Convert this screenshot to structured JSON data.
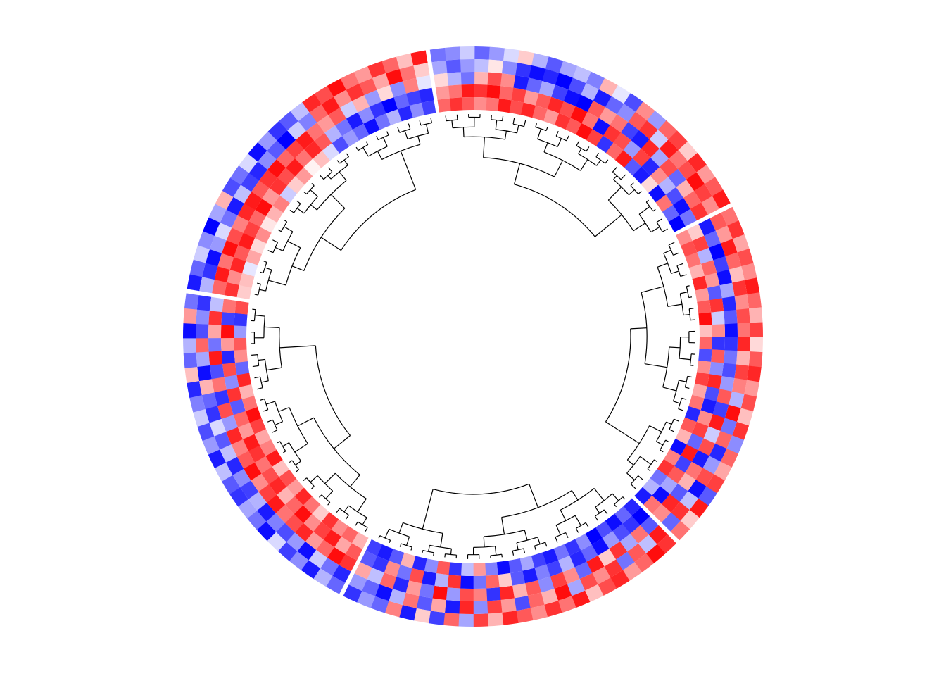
{
  "chart_data": {
    "type": "heatmap",
    "layout": "circular",
    "title": "",
    "colors": {
      "low": "#0000ff",
      "mid": "#ffffff",
      "high": "#ff0000"
    },
    "value_range": [
      -2,
      2
    ],
    "tracks": 5,
    "sectors": [
      {
        "name": "",
        "n": 24,
        "order": "top"
      },
      {
        "name": "",
        "n": 24,
        "order": "upper-right"
      },
      {
        "name": "",
        "n": 24,
        "order": "lower-right"
      },
      {
        "name": "",
        "n": 24,
        "order": "bottom"
      },
      {
        "name": "",
        "n": 24,
        "order": "left"
      }
    ],
    "values": [
      [
        [
          -1.8,
          -0.6,
          1.2,
          1.6,
          0.4
        ],
        [
          -1.2,
          -1.6,
          1.8,
          0.9,
          0.5
        ],
        [
          -0.4,
          -1.9,
          1.1,
          1.7,
          -0.2
        ],
        [
          -0.9,
          -0.8,
          1.9,
          1.3,
          0.7
        ],
        [
          -2.0,
          -0.3,
          1.4,
          1.8,
          0.3
        ],
        [
          -0.7,
          -1.1,
          1.0,
          1.5,
          0.9
        ],
        [
          0.6,
          -1.8,
          1.7,
          1.2,
          0.2
        ],
        [
          -1.4,
          -0.5,
          1.8,
          1.9,
          0.6
        ],
        [
          -1.1,
          -1.5,
          1.3,
          0.8,
          1.0
        ],
        [
          -0.3,
          -1.7,
          1.6,
          1.6,
          -0.4
        ],
        [
          -1.9,
          -0.9,
          1.9,
          1.4,
          0.4
        ],
        [
          -0.8,
          -1.3,
          1.2,
          1.8,
          0.8
        ],
        [
          -1.6,
          -2.0,
          1.5,
          1.1,
          0.1
        ],
        [
          -1.3,
          -0.4,
          1.8,
          1.7,
          0.5
        ],
        [
          -0.5,
          -1.0,
          1.1,
          1.3,
          -0.3
        ],
        [
          1.7,
          1.2,
          0.8,
          -0.6,
          -1.4
        ],
        [
          1.4,
          1.8,
          1.3,
          -1.1,
          -0.8
        ],
        [
          1.9,
          0.9,
          -0.4,
          -1.8,
          -1.2
        ],
        [
          1.1,
          1.6,
          0.6,
          -0.9,
          -1.9
        ],
        [
          0.8,
          1.3,
          -0.8,
          -1.6,
          -1.1
        ],
        [
          1.6,
          0.7,
          0.3,
          -2.0,
          -0.6
        ],
        [
          1.2,
          1.9,
          -0.9,
          -1.2,
          -1.7
        ],
        [
          0.5,
          1.1,
          1.0,
          -1.5,
          -0.9
        ],
        [
          1.8,
          0.4,
          -0.2,
          -1.7,
          -1.5
        ]
      ],
      [
        [
          -1.1,
          -0.7,
          0.3,
          0.8,
          1.2
        ],
        [
          -0.9,
          -1.3,
          -0.6,
          1.1,
          1.6
        ],
        [
          -0.4,
          -0.8,
          -1.1,
          1.8,
          1.3
        ],
        [
          -1.2,
          -0.5,
          0.6,
          1.6,
          0.9
        ],
        [
          -0.8,
          0.2,
          1.4,
          1.9,
          1.1
        ],
        [
          -0.3,
          -0.9,
          0.9,
          1.2,
          1.8
        ],
        [
          0.4,
          -1.6,
          -1.8,
          1.5,
          1.4
        ],
        [
          -0.6,
          -1.9,
          -1.2,
          0.8,
          1.7
        ],
        [
          -1.3,
          -1.7,
          -0.7,
          1.3,
          1.2
        ],
        [
          -0.7,
          -2.0,
          -1.5,
          1.7,
          0.8
        ],
        [
          -0.5,
          -1.4,
          -1.9,
          1.4,
          1.6
        ],
        [
          -1.0,
          -0.6,
          -2.0,
          1.9,
          1.3
        ],
        [
          0.6,
          -1.8,
          1.3,
          1.1,
          1.9
        ],
        [
          -0.2,
          -1.2,
          0.8,
          -1.9,
          1.5
        ],
        [
          -1.4,
          -0.9,
          1.1,
          1.6,
          -1.6
        ],
        [
          0.9,
          1.3,
          -1.5,
          1.4,
          1.2
        ],
        [
          -0.8,
          1.6,
          -1.8,
          -0.8,
          1.8
        ],
        [
          1.2,
          -0.4,
          1.7,
          1.5,
          -1.3
        ],
        [
          1.5,
          1.8,
          -0.7,
          -1.7,
          -1.8
        ],
        [
          0.4,
          1.1,
          1.4,
          0.9,
          0.3
        ],
        [
          1.7,
          1.4,
          -1.2,
          -0.6,
          -1.9
        ],
        [
          0.8,
          1.9,
          0.6,
          -1.4,
          1.1
        ],
        [
          1.3,
          1.5,
          1.2,
          -1.9,
          -1.2
        ],
        [
          1.8,
          0.9,
          1.6,
          -1.1,
          -2.0
        ]
      ],
      [
        [
          1.1,
          1.3,
          -1.8,
          0.4,
          0.9
        ],
        [
          1.6,
          0.8,
          -1.2,
          1.5,
          1.4
        ],
        [
          0.7,
          1.8,
          -2.0,
          -0.6,
          1.1
        ],
        [
          1.4,
          1.2,
          -1.5,
          1.2,
          0.6
        ],
        [
          0.9,
          0.5,
          -1.9,
          0.8,
          1.7
        ],
        [
          1.8,
          1.6,
          -0.7,
          -1.3,
          0.8
        ],
        [
          1.2,
          0.9,
          -1.7,
          1.6,
          1.3
        ],
        [
          0.6,
          1.4,
          -1.3,
          -0.4,
          1.9
        ],
        [
          1.5,
          1.1,
          -1.9,
          0.9,
          0.5
        ],
        [
          0.3,
          1.7,
          -1.6,
          -1.6,
          1.2
        ],
        [
          1.3,
          0.6,
          -1.1,
          1.3,
          -1.4
        ],
        [
          1.7,
          1.5,
          -1.4,
          -0.9,
          0.9
        ],
        [
          0.8,
          1.0,
          -0.8,
          1.7,
          1.5
        ],
        [
          1.4,
          -0.6,
          1.3,
          -1.4,
          0.7
        ],
        [
          0.5,
          1.9,
          -1.5,
          -1.8,
          1.1
        ],
        [
          1.6,
          -1.1,
          1.8,
          0.9,
          -1.7
        ],
        [
          -0.9,
          1.2,
          -0.4,
          1.5,
          1.3
        ],
        [
          1.2,
          -1.7,
          1.4,
          -1.2,
          0.6
        ],
        [
          0.7,
          -0.8,
          -1.8,
          1.8,
          -1.9
        ],
        [
          1.5,
          1.4,
          1.1,
          -1.5,
          1.0
        ],
        [
          -1.3,
          -1.9,
          0.6,
          1.3,
          1.6
        ],
        [
          1.8,
          -0.5,
          -1.3,
          -0.7,
          -1.1
        ],
        [
          0.4,
          1.6,
          1.7,
          -1.9,
          -0.6
        ],
        [
          1.1,
          -1.2,
          0.9,
          1.1,
          -1.8
        ]
      ],
      [
        [
          1.6,
          1.8,
          -1.3,
          -2.0,
          -1.7
        ],
        [
          1.9,
          -0.5,
          1.1,
          -1.6,
          -1.2
        ],
        [
          1.2,
          1.3,
          -0.7,
          -1.4,
          -1.9
        ],
        [
          0.8,
          -1.1,
          1.6,
          -0.8,
          -1.4
        ],
        [
          1.7,
          1.6,
          0.4,
          -1.9,
          -2.0
        ],
        [
          1.4,
          0.9,
          1.8,
          -1.2,
          -0.9
        ],
        [
          0.5,
          1.4,
          -1.2,
          -1.7,
          -1.6
        ],
        [
          1.8,
          -0.7,
          0.9,
          -0.6,
          -1.1
        ],
        [
          1.1,
          1.9,
          1.5,
          -1.5,
          -1.8
        ],
        [
          1.6,
          0.6,
          -0.9,
          -1.0,
          -1.5
        ],
        [
          0.9,
          1.2,
          1.3,
          -1.8,
          -0.7
        ],
        [
          1.3,
          -1.4,
          0.6,
          -1.3,
          -1.3
        ],
        [
          1.7,
          0.8,
          1.7,
          0.4,
          -1.9
        ],
        [
          0.6,
          1.5,
          -1.6,
          1.2,
          -1.0
        ],
        [
          1.5,
          -0.9,
          1.0,
          -1.1,
          0.8
        ],
        [
          -0.7,
          1.7,
          1.4,
          -1.9,
          -0.5
        ],
        [
          1.2,
          -1.8,
          -0.8,
          1.6,
          -1.6
        ],
        [
          -1.5,
          0.7,
          1.9,
          -0.6,
          1.3
        ],
        [
          0.4,
          -1.3,
          -1.1,
          -1.8,
          -0.9
        ],
        [
          -1.8,
          1.1,
          0.8,
          1.4,
          -1.7
        ],
        [
          1.0,
          -0.6,
          -1.7,
          -1.1,
          0.6
        ],
        [
          -1.2,
          -1.9,
          1.2,
          0.9,
          -1.3
        ],
        [
          -0.8,
          -1.2,
          -0.5,
          -1.6,
          -1.8
        ],
        [
          -1.6,
          -0.8,
          0.7,
          -1.3,
          -1.5
        ]
      ],
      [
        [
          -1.2,
          -1.7,
          1.6,
          1.3,
          0.6
        ],
        [
          -0.6,
          -1.1,
          1.9,
          0.7,
          1.2
        ],
        [
          -1.8,
          -0.4,
          1.2,
          1.8,
          0.9
        ],
        [
          -0.9,
          -1.9,
          0.8,
          1.5,
          1.6
        ],
        [
          -1.5,
          -0.8,
          1.7,
          0.9,
          0.4
        ],
        [
          -0.3,
          -1.4,
          1.4,
          1.9,
          1.1
        ],
        [
          -1.9,
          -1.0,
          1.1,
          1.2,
          1.7
        ],
        [
          -1.1,
          -1.8,
          1.8,
          0.6,
          0.8
        ],
        [
          -0.7,
          -0.6,
          1.5,
          1.7,
          1.4
        ],
        [
          -1.6,
          -1.5,
          0.9,
          1.4,
          0.5
        ],
        [
          -1.3,
          -0.9,
          1.9,
          1.1,
          1.8
        ],
        [
          -0.5,
          -1.7,
          1.3,
          1.6,
          1.0
        ],
        [
          -1.8,
          -0.5,
          1.0,
          1.8,
          0.7
        ],
        [
          -0.8,
          -1.3,
          1.7,
          0.8,
          1.5
        ],
        [
          -1.4,
          -0.3,
          -0.8,
          1.2,
          1.9
        ],
        [
          -0.4,
          -1.6,
          1.4,
          -1.3,
          1.1
        ],
        [
          -1.0,
          -1.2,
          -1.6,
          1.6,
          0.6
        ],
        [
          -1.7,
          0.6,
          1.1,
          -0.9,
          1.7
        ],
        [
          0.5,
          -1.9,
          -1.4,
          1.4,
          -1.2
        ],
        [
          -1.2,
          -0.7,
          1.8,
          -1.7,
          0.9
        ],
        [
          -0.6,
          1.2,
          -1.1,
          0.8,
          1.3
        ],
        [
          -1.9,
          -1.4,
          0.7,
          1.9,
          -0.8
        ],
        [
          0.8,
          -0.9,
          1.6,
          -1.5,
          -1.6
        ],
        [
          -1.1,
          -1.6,
          -0.5,
          1.1,
          1.4
        ]
      ]
    ]
  }
}
